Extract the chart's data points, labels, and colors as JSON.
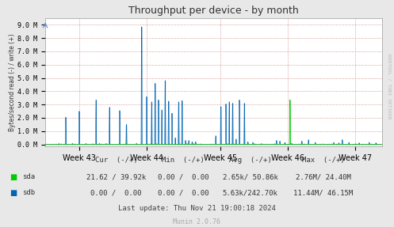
{
  "title": "Throughput per device - by month",
  "ylabel": "Bytes/second read (-) / write (+)",
  "background_color": "#e8e8e8",
  "plot_bg_color": "#ffffff",
  "grid_color": "#d08080",
  "sda_color": "#00cc00",
  "sdb_color": "#0066b2",
  "ytick_labels": [
    "0.0 M",
    "1.0 M",
    "2.0 M",
    "3.0 M",
    "4.0 M",
    "5.0 M",
    "6.0 M",
    "7.0 M",
    "8.0 M",
    "9.0 M"
  ],
  "week_labels": [
    "Week 43",
    "Week 44",
    "Week 45",
    "Week 46",
    "Week 47"
  ],
  "footer": "Last update: Thu Nov 21 19:00:18 2024",
  "munin_version": "Munin 2.0.76",
  "rrdtool_text": "RRDTOOL / TOBI OETIKER",
  "cur_header": "Cur  (-/+)",
  "min_header": "Min  (-/+)",
  "avg_header": "Avg  (-/+)",
  "max_header": "Max  (-/+)",
  "sda_cur": "21.62 / 39.92k",
  "sda_min": "0.00 /  0.00",
  "sda_avg": "2.65k/ 50.86k",
  "sda_max": "2.76M/ 24.40M",
  "sdb_cur": "0.00 /  0.00",
  "sdb_min": "0.00 /  0.00",
  "sdb_avg": "5.63k/242.70k",
  "sdb_max": "11.44M/ 46.15M"
}
